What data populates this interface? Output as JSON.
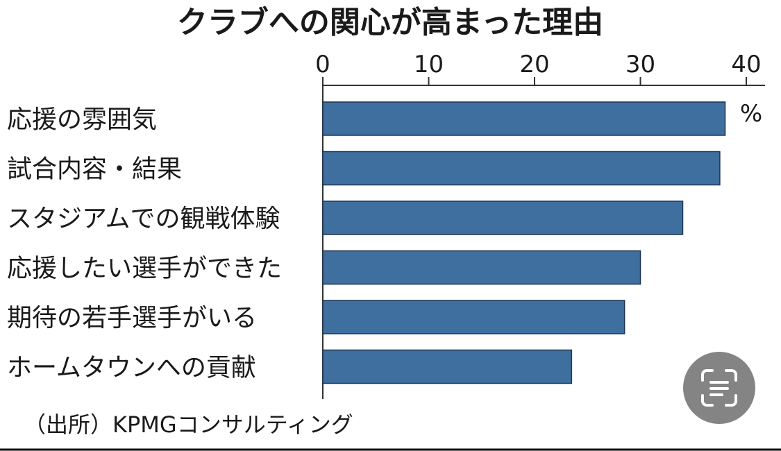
{
  "chart_data": {
    "type": "bar",
    "orientation": "horizontal",
    "title": "クラブへの関心が高まった理由",
    "categories": [
      "応援の雰囲気",
      "試合内容・結果",
      "スタジアムでの観戦体験",
      "応援したい選手ができた",
      "期待の若手選手がいる",
      "ホームタウンへの貢献"
    ],
    "values": [
      38,
      37.5,
      34,
      30,
      28.5,
      23.5
    ],
    "xlim": [
      0,
      42
    ],
    "xticks": [
      0,
      10,
      20,
      30,
      40
    ],
    "unit": "%",
    "bar_color": "#3f6f9f",
    "source": "（出所）KPMGコンサルティング",
    "grid": false,
    "legend": "none"
  },
  "ui": {
    "lens_icon": "scan-text-icon"
  }
}
